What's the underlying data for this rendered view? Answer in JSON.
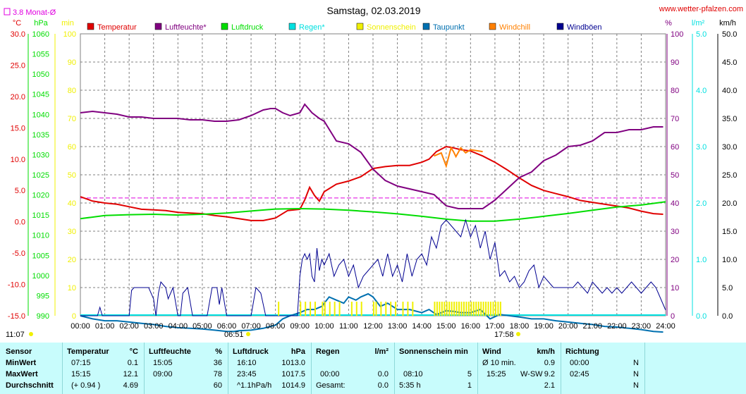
{
  "site": "www.wetter-pfalzen.com",
  "title": "Samstag, 02.03.2019",
  "month_avg_label": "3.8 Monat-Ø",
  "sunrise_label": "06:51",
  "sunset_label": "17:58",
  "now_label": "11:07",
  "colors": {
    "temp": "#e00000",
    "hum": "#800080",
    "press": "#00dd00",
    "rain": "#00e0e0",
    "sun": "#f0f000",
    "dew": "#0070b0",
    "chill": "#ff8000",
    "gust": "#000090",
    "grid": "#808080",
    "monthavg": "#e000e0"
  },
  "chart_data": {
    "type": "line",
    "title": "Samstag, 02.03.2019",
    "legend": [
      {
        "name": "Temperatur",
        "color": "#e00000"
      },
      {
        "name": "Luftfeuchte*",
        "color": "#800080"
      },
      {
        "name": "Luftdruck",
        "color": "#00dd00"
      },
      {
        "name": "Regen*",
        "color": "#00e0e0"
      },
      {
        "name": "Sonnenschein",
        "color": "#f0f000"
      },
      {
        "name": "Taupunkt",
        "color": "#0070b0"
      },
      {
        "name": "Windchill",
        "color": "#ff8000"
      },
      {
        "name": "Windböen",
        "color": "#000090"
      }
    ],
    "x_ticks": [
      "00:00",
      "01:00",
      "02:00",
      "03:00",
      "04:00",
      "05:00",
      "06:00",
      "07:00",
      "08:00",
      "09:00",
      "10:00",
      "11:00",
      "12:00",
      "13:00",
      "14:00",
      "15:00",
      "16:00",
      "17:00",
      "18:00",
      "19:00",
      "20:00",
      "21:00",
      "22:00",
      "23:00",
      "24:00"
    ],
    "axes": {
      "temp": {
        "unit": "°C",
        "min": -15,
        "max": 30,
        "ticks": [
          "30.0",
          "25.0",
          "20.0",
          "15.0",
          "10.0",
          "5.0",
          "0.0",
          "-5.0",
          "-10.0",
          "-15.0"
        ]
      },
      "press": {
        "unit": "hPa",
        "min": 990,
        "max": 1060,
        "ticks": [
          "1060",
          "1055",
          "1050",
          "1045",
          "1040",
          "1035",
          "1030",
          "1025",
          "1020",
          "1015",
          "1010",
          "1005",
          "1000",
          "995",
          "990"
        ]
      },
      "sunmin": {
        "unit": "min",
        "min": 0,
        "max": 100,
        "ticks": [
          "100",
          "90",
          "80",
          "70",
          "60",
          "50",
          "40",
          "30",
          "20",
          "10",
          "0"
        ]
      },
      "hum": {
        "unit": "%",
        "min": 0,
        "max": 100,
        "ticks": [
          "100",
          "90",
          "80",
          "70",
          "60",
          "50",
          "40",
          "30",
          "20",
          "10",
          "0"
        ]
      },
      "rain": {
        "unit": "l/m²",
        "min": 0,
        "max": 5,
        "ticks": [
          "5.0",
          "4.0",
          "3.0",
          "2.0",
          "1.0",
          "0.0"
        ]
      },
      "wind": {
        "unit": "km/h",
        "min": 0,
        "max": 50,
        "ticks": [
          "50.0",
          "45.0",
          "40.0",
          "35.0",
          "30.0",
          "25.0",
          "20.0",
          "15.0",
          "10.0",
          "5.0",
          "0.0"
        ]
      }
    },
    "month_avg_temp": 3.8,
    "series": [
      {
        "name": "Temperatur",
        "axis": "temp",
        "x": [
          0,
          0.5,
          1,
          1.5,
          2,
          2.5,
          3,
          3.5,
          4,
          4.5,
          5,
          5.5,
          6,
          6.5,
          7,
          7.5,
          8,
          8.5,
          9,
          9.2,
          9.4,
          9.6,
          9.8,
          10,
          10.5,
          11,
          11.5,
          12,
          12.5,
          13,
          13.5,
          14,
          14.3,
          14.6,
          15,
          15.3,
          15.6,
          16,
          16.5,
          17,
          17.5,
          18,
          18.5,
          19,
          19.5,
          20,
          20.5,
          21,
          21.5,
          22,
          22.5,
          23,
          23.5,
          23.9
        ],
        "y": [
          4,
          3.3,
          3,
          2.8,
          2.4,
          2,
          1.9,
          1.8,
          1.5,
          1.4,
          1.3,
          1.0,
          0.8,
          0.5,
          0.2,
          0.2,
          0.6,
          1.8,
          2.0,
          3.5,
          5.5,
          4.2,
          3.3,
          4.8,
          6.0,
          6.5,
          7.2,
          8.5,
          8.8,
          9.0,
          9.0,
          9.5,
          10,
          11.2,
          12.0,
          11.8,
          11.5,
          11.3,
          10.5,
          9.5,
          8.3,
          7.0,
          5.8,
          5.0,
          4.5,
          4.0,
          3.4,
          3.1,
          2.8,
          2.5,
          2.2,
          1.7,
          1.3,
          1.2
        ]
      },
      {
        "name": "Luftfeuchte*",
        "axis": "hum",
        "x": [
          0,
          0.5,
          1,
          1.5,
          2,
          2.5,
          3,
          3.5,
          4,
          4.5,
          5,
          5.5,
          6,
          6.5,
          7,
          7.5,
          7.8,
          8,
          8.3,
          8.6,
          9,
          9.2,
          9.5,
          9.8,
          10,
          10.5,
          11,
          11.5,
          12,
          12.5,
          13,
          13.5,
          14,
          14.5,
          15,
          15.5,
          16,
          16.5,
          17,
          17.5,
          18,
          18.5,
          19,
          19.5,
          20,
          20.5,
          21,
          21.5,
          22,
          22.5,
          23,
          23.5,
          23.9
        ],
        "y": [
          72,
          72.5,
          72,
          71.5,
          70.5,
          70.5,
          70,
          70,
          70,
          69.5,
          69.5,
          69,
          69,
          69.5,
          71,
          73,
          73.5,
          73.5,
          72,
          71,
          72,
          75,
          72,
          70,
          69,
          62,
          61,
          58,
          52,
          48,
          46,
          45,
          44,
          43,
          39,
          38,
          38,
          38,
          41,
          45,
          49,
          51,
          55,
          57,
          60,
          60.5,
          62,
          65,
          65,
          66,
          66,
          67,
          67
        ]
      },
      {
        "name": "Luftdruck",
        "axis": "press",
        "x": [
          0,
          1,
          2,
          3,
          4,
          5,
          6,
          7,
          8,
          9,
          10,
          11,
          12,
          13,
          14,
          15,
          16,
          17,
          18,
          19,
          20,
          21,
          22,
          23,
          24
        ],
        "y": [
          1014.1,
          1014.9,
          1015.1,
          1015.2,
          1015.0,
          1015.2,
          1015.5,
          1016.0,
          1016.5,
          1016.6,
          1016.5,
          1016.2,
          1015.8,
          1015.3,
          1014.7,
          1014.0,
          1013.5,
          1013.5,
          1014.0,
          1014.7,
          1015.4,
          1016.2,
          1017.0,
          1017.5,
          1018.3
        ]
      },
      {
        "name": "Taupunkt",
        "axis": "temp",
        "x": [
          0,
          0.5,
          1,
          1.5,
          2,
          2.5,
          3,
          3.5,
          4,
          4.5,
          5,
          5.5,
          6,
          6.3,
          6.5,
          7,
          7.5,
          8,
          8.3,
          8.6,
          9,
          9.3,
          9.6,
          9.9,
          10.2,
          10.5,
          10.8,
          11,
          11.3,
          11.5,
          11.8,
          12,
          12.3,
          12.6,
          13,
          13.5,
          14,
          14.3,
          14.6,
          15,
          15.3,
          15.6,
          16,
          16.4,
          16.8,
          17.2,
          17.6,
          18,
          18.5,
          19,
          19.5,
          20,
          20.5,
          21,
          21.5,
          22,
          22.5,
          23,
          23.5,
          23.9
        ],
        "y": [
          -15,
          -15.5,
          -15.8,
          -15.8,
          -16,
          -16.2,
          -16.4,
          -16.7,
          -16.9,
          -17.0,
          -17.1,
          -17.3,
          -17.5,
          -17.5,
          -17.4,
          -17.3,
          -17.0,
          -16.5,
          -15.5,
          -15.0,
          -14.5,
          -14.0,
          -14.0,
          -13.5,
          -12.0,
          -12.5,
          -13.0,
          -12.0,
          -12.5,
          -12.0,
          -11.5,
          -12.0,
          -13.5,
          -13.0,
          -14.0,
          -14.0,
          -14.5,
          -14.0,
          -14.8,
          -14.2,
          -14.3,
          -14.5,
          -14.5,
          -14.0,
          -15.5,
          -14.8,
          -15.0,
          -15.2,
          -15.5,
          -15.5,
          -15.8,
          -16.0,
          -16.2,
          -16.4,
          -16.7,
          -16.8,
          -17.0,
          -17.2,
          -17.5,
          -17.6
        ]
      },
      {
        "name": "Windchill",
        "axis": "temp",
        "x": [
          14.5,
          14.8,
          15.0,
          15.2,
          15.3,
          15.4,
          15.6,
          15.8,
          16.0,
          16.5
        ],
        "y": [
          10.5,
          11.0,
          8.9,
          11.8,
          11.2,
          10.4,
          11.8,
          11.0,
          11.5,
          11.2
        ]
      },
      {
        "name": "Windböen",
        "axis": "wind",
        "x": [
          0,
          0.7,
          0.8,
          0.9,
          1,
          2,
          2.1,
          2.2,
          2.5,
          2.8,
          3,
          3.1,
          3.2,
          3.3,
          3.5,
          3.6,
          3.8,
          4,
          4.1,
          4.2,
          4.4,
          4.6,
          4.9,
          5,
          5.2,
          5.4,
          5.6,
          5.7,
          5.8,
          6,
          6.5,
          7,
          7.2,
          7.4,
          7.6,
          8,
          8.3,
          8.6,
          8.9,
          9,
          9.1,
          9.2,
          9.3,
          9.4,
          9.5,
          9.6,
          9.7,
          9.8,
          9.9,
          10,
          10.2,
          10.4,
          10.6,
          10.8,
          11,
          11.2,
          11.4,
          11.6,
          11.8,
          12,
          12.2,
          12.4,
          12.6,
          12.8,
          13,
          13.2,
          13.4,
          13.6,
          13.8,
          14,
          14.2,
          14.4,
          14.6,
          14.8,
          15,
          15.2,
          15.4,
          15.6,
          15.8,
          16,
          16.2,
          16.4,
          16.6,
          16.8,
          17,
          17.2,
          17.4,
          17.6,
          17.8,
          18,
          18.2,
          18.4,
          18.6,
          18.8,
          19,
          19.2,
          19.4,
          19.6,
          19.8,
          20,
          20.2,
          20.4,
          20.6,
          20.8,
          21,
          21.2,
          21.4,
          21.6,
          21.8,
          22,
          22.2,
          22.4,
          22.6,
          22.8,
          23,
          23.2,
          23.4,
          23.6,
          23.8,
          24
        ],
        "y": [
          0,
          0,
          1.5,
          0,
          0,
          0,
          4.5,
          5,
          5,
          5,
          3,
          0,
          4,
          6,
          5,
          3,
          5,
          0,
          0,
          4,
          5,
          0,
          0,
          0,
          0,
          5,
          5,
          2,
          5,
          0,
          0,
          0,
          5,
          4,
          0,
          0,
          0,
          0,
          0,
          7,
          10,
          11,
          10,
          11,
          7,
          6,
          12,
          8,
          10,
          9,
          11,
          7,
          9,
          10,
          7,
          9,
          5,
          7,
          8,
          9,
          10,
          7,
          11,
          7,
          9,
          6,
          11,
          7,
          10,
          11,
          9,
          14,
          12,
          16,
          17,
          16,
          15,
          14,
          17,
          14,
          16,
          12,
          15,
          10,
          13,
          7,
          8,
          6,
          7,
          5,
          6,
          8,
          9,
          5,
          7,
          6,
          5,
          5,
          5,
          5,
          5,
          6,
          5,
          4,
          6,
          5,
          4,
          5,
          4,
          5,
          4,
          5,
          6,
          5,
          4,
          5,
          6,
          5,
          3,
          1
        ]
      },
      {
        "name": "Sonnenschein",
        "axis": "sunmin",
        "x": [
          8.1,
          9.0,
          9.2,
          9.4,
          9.6,
          9.9,
          10.0,
          10.2,
          10.4,
          10.6,
          11.1,
          11.3,
          11.5,
          12.0,
          12.1,
          12.3,
          12.5,
          12.7,
          12.9,
          13.2,
          13.4,
          13.6,
          14.5,
          14.6,
          14.7,
          14.8,
          14.9,
          15.0,
          15.1,
          15.2,
          15.3,
          15.4,
          15.5,
          15.6,
          15.7,
          15.8,
          15.9,
          16.0,
          16.1,
          16.2,
          16.3,
          16.4,
          16.5,
          16.6,
          16.7,
          16.8,
          16.9,
          17.0,
          17.1,
          17.2
        ],
        "y": [
          5,
          5,
          5,
          5,
          5,
          5,
          5,
          5,
          5,
          5,
          5,
          5,
          5,
          5,
          5,
          5,
          5,
          5,
          5,
          5,
          5,
          5,
          5,
          5,
          5,
          5,
          5,
          5,
          5,
          5,
          5,
          5,
          5,
          5,
          5,
          5,
          5,
          5,
          5,
          5,
          5,
          5,
          5,
          5,
          5,
          5,
          5,
          5,
          5,
          5
        ]
      }
    ]
  },
  "table": {
    "header": [
      "Sensor",
      "Temperatur",
      "°C",
      "Luftfeuchte",
      "%",
      "Luftdruck",
      "hPa",
      "Regen",
      "l/m²",
      "Sonnenschein min",
      "Wind",
      "km/h",
      "Richtung"
    ],
    "minwert": {
      "label": "MinWert",
      "t_time": "07:15",
      "t_val": "0.1",
      "h_time": "15:05",
      "h_val": "36",
      "p_time": "16:10",
      "p_val": "1013.0",
      "w_label": "Ø 10 min.",
      "w_val": "0.9",
      "d_time": "00:00",
      "d_val": "N"
    },
    "maxwert": {
      "label": "MaxWert",
      "t_time": "15:15",
      "t_val": "12.1",
      "h_time": "09:00",
      "h_val": "78",
      "p_time": "23:45",
      "p_val": "1017.5",
      "r_time": "00:00",
      "r_val": "0.0",
      "s_time": "08:10",
      "s_val": "5",
      "w_time": "15:25",
      "w_dir": "W-SW",
      "w_val": "9.2",
      "d_time": "02:45",
      "d_val": "N"
    },
    "durchschnitt": {
      "label": "Durchschnitt",
      "t_time": "(+ 0.94 )",
      "t_val": "4.69",
      "h_val": "60",
      "p_time": "^1.1hPa/h",
      "p_val": "1014.9",
      "r_time": "Gesamt:",
      "r_val": "0.0",
      "s_time": "5:35 h",
      "s_val": "1",
      "w_val": "2.1",
      "d_val": "N"
    }
  }
}
